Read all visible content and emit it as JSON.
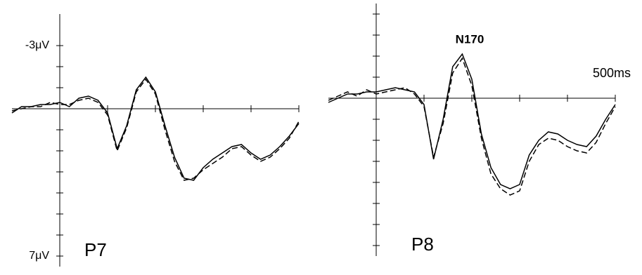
{
  "chart_data": [
    {
      "type": "line",
      "title": "P7",
      "x": [
        -100,
        -80,
        -60,
        -40,
        -20,
        0,
        20,
        40,
        60,
        80,
        100,
        120,
        140,
        160,
        180,
        200,
        220,
        240,
        260,
        280,
        300,
        320,
        340,
        360,
        380,
        400,
        420,
        440,
        460,
        480,
        500
      ],
      "series": [
        {
          "name": "solid",
          "color": "#000000",
          "dash": false,
          "values": [
            0.2,
            -0.1,
            -0.1,
            -0.2,
            -0.2,
            -0.3,
            -0.1,
            -0.5,
            -0.6,
            -0.4,
            0.2,
            1.9,
            0.8,
            -0.9,
            -1.5,
            -0.8,
            0.8,
            2.3,
            3.3,
            3.4,
            2.8,
            2.4,
            2.1,
            1.8,
            1.7,
            2.1,
            2.4,
            2.2,
            1.8,
            1.3,
            0.7
          ]
        },
        {
          "name": "dashed",
          "color": "#000000",
          "dash": true,
          "values": [
            0.1,
            0.0,
            -0.1,
            -0.1,
            -0.3,
            -0.2,
            -0.2,
            -0.4,
            -0.5,
            -0.3,
            0.3,
            2.0,
            0.9,
            -0.8,
            -1.4,
            -0.7,
            1.0,
            2.5,
            3.4,
            3.3,
            2.9,
            2.6,
            2.3,
            1.9,
            1.8,
            2.2,
            2.5,
            2.3,
            1.9,
            1.4,
            0.6
          ]
        }
      ],
      "xlim": [
        -100,
        500
      ],
      "ylim": [
        -4.5,
        7.5
      ],
      "inverted_y": true,
      "xtick_marks": [
        0,
        100,
        200,
        300,
        400,
        500
      ],
      "ytick_marks": [
        -3,
        -2,
        -1,
        1,
        2,
        3,
        4,
        5,
        6,
        7
      ],
      "yticks": [
        {
          "value": -3,
          "label": "-3μV"
        },
        {
          "value": 7,
          "label": "7μV"
        }
      ]
    },
    {
      "type": "line",
      "title": "P8",
      "annotation": "N170",
      "xlabel": "500ms",
      "x": [
        -100,
        -80,
        -60,
        -40,
        -20,
        0,
        20,
        40,
        60,
        80,
        100,
        120,
        140,
        160,
        180,
        200,
        220,
        240,
        260,
        280,
        300,
        320,
        340,
        360,
        380,
        400,
        420,
        440,
        460,
        480,
        500
      ],
      "series": [
        {
          "name": "solid",
          "color": "#000000",
          "dash": false,
          "values": [
            0.2,
            0.0,
            -0.2,
            -0.2,
            -0.3,
            -0.3,
            -0.4,
            -0.5,
            -0.4,
            -0.3,
            0.3,
            2.9,
            1.0,
            -1.5,
            -2.1,
            -0.9,
            1.7,
            3.3,
            4.1,
            4.3,
            4.1,
            2.7,
            2.0,
            1.6,
            1.7,
            2.0,
            2.2,
            2.3,
            1.8,
            1.0,
            0.3
          ]
        },
        {
          "name": "dashed",
          "color": "#000000",
          "dash": true,
          "values": [
            0.1,
            -0.1,
            -0.3,
            -0.1,
            -0.4,
            -0.2,
            -0.3,
            -0.4,
            -0.5,
            -0.2,
            0.4,
            2.8,
            1.2,
            -1.2,
            -1.9,
            -0.6,
            1.9,
            3.6,
            4.3,
            4.6,
            4.4,
            3.0,
            2.2,
            1.9,
            2.0,
            2.3,
            2.5,
            2.6,
            2.1,
            1.2,
            0.4
          ]
        }
      ],
      "xlim": [
        -100,
        500
      ],
      "ylim": [
        -4.5,
        7.5
      ],
      "inverted_y": true,
      "xtick_marks": [
        0,
        100,
        200,
        300,
        400,
        500
      ],
      "ytick_marks": [
        -4,
        -3,
        -2,
        -1,
        1,
        2,
        3,
        4,
        5,
        6,
        7
      ]
    }
  ]
}
